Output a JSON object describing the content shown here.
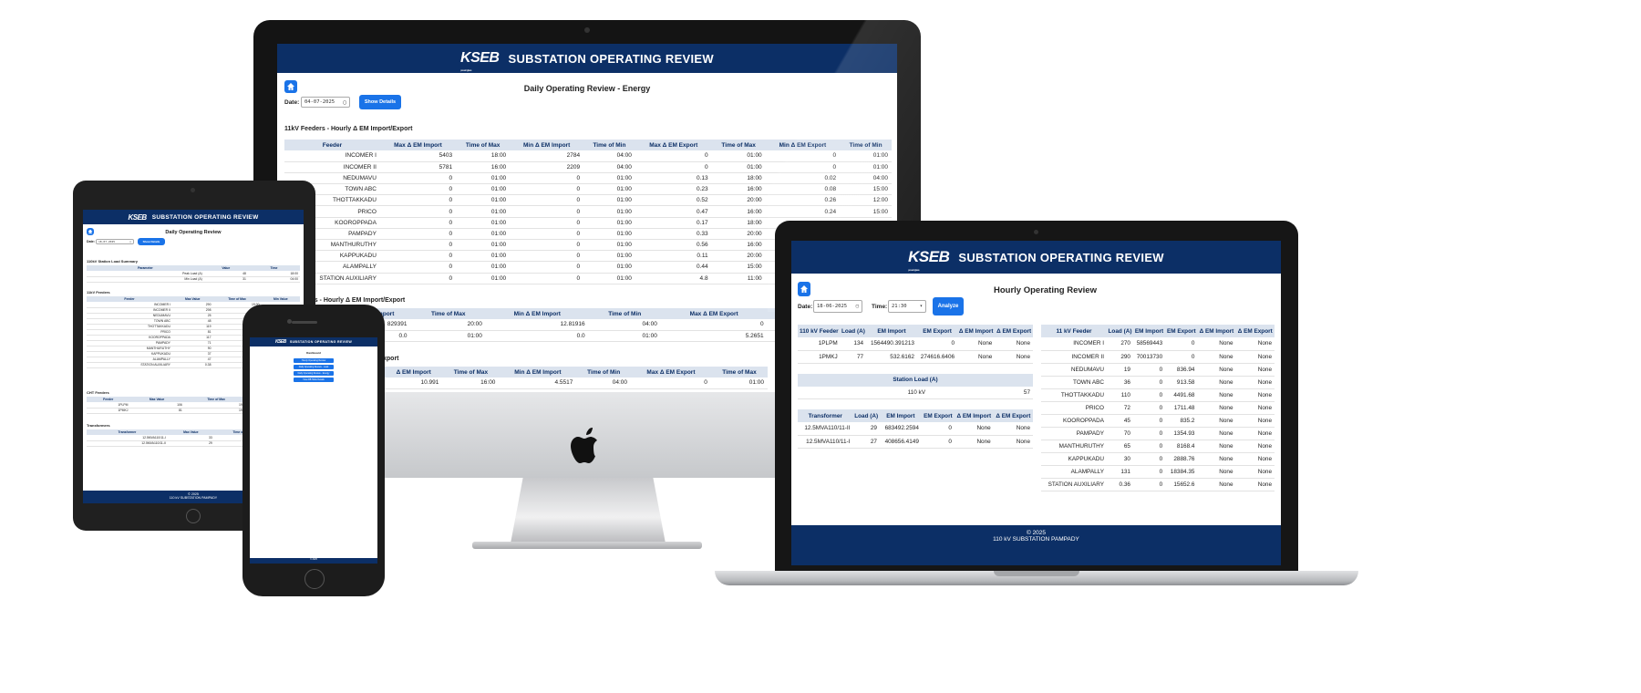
{
  "app": {
    "logo_text": "KSEB",
    "logo_tagline": "powering lives",
    "title": "SUBSTATION OPERATING REVIEW",
    "footer_line1": "© 2025",
    "footer_line2": "110 kV SUBSTATION PAMPADY"
  },
  "imac": {
    "page_title": "Daily Operating Review - Energy",
    "date_label": "Date:",
    "date_value": "04-07-2025",
    "show_button": "Show Details",
    "section1_title": "11kV Feeders - Hourly Δ EM Import/Export",
    "section2_title_fragment": "rs - Hourly Δ EM Import/Export",
    "section3_title_fragment": "xport",
    "columns": [
      "Feeder",
      "Max Δ EM Import",
      "Time of Max",
      "Min Δ EM Import",
      "Time of Min",
      "Max Δ EM Export",
      "Time of Max",
      "Min Δ EM Export",
      "Time of Min"
    ],
    "rows": [
      [
        "INCOMER I",
        "5403",
        "18:00",
        "2784",
        "04:00",
        "0",
        "01:00",
        "0",
        "01:00"
      ],
      [
        "INCOMER II",
        "5781",
        "16:00",
        "2209",
        "04:00",
        "0",
        "01:00",
        "0",
        "01:00"
      ],
      [
        "NEDUMAVU",
        "0",
        "01:00",
        "0",
        "01:00",
        "0.13",
        "18:00",
        "0.02",
        "04:00"
      ],
      [
        "TOWN ABC",
        "0",
        "01:00",
        "0",
        "01:00",
        "0.23",
        "16:00",
        "0.08",
        "15:00"
      ],
      [
        "THOTTAKKADU",
        "0",
        "01:00",
        "0",
        "01:00",
        "0.52",
        "20:00",
        "0.26",
        "12:00"
      ],
      [
        "PRICO",
        "0",
        "01:00",
        "0",
        "01:00",
        "0.47",
        "16:00",
        "0.24",
        "15:00"
      ],
      [
        "KOOROPPADA",
        "0",
        "01:00",
        "0",
        "01:00",
        "0.17",
        "18:00",
        "",
        ""
      ],
      [
        "PAMPADY",
        "0",
        "01:00",
        "0",
        "01:00",
        "0.33",
        "20:00",
        "",
        ""
      ],
      [
        "MANTHURUTHY",
        "0",
        "01:00",
        "0",
        "01:00",
        "0.56",
        "16:00",
        "",
        ""
      ],
      [
        "KAPPUKADU",
        "0",
        "01:00",
        "0",
        "01:00",
        "0.11",
        "20:00",
        "",
        ""
      ],
      [
        "ALAMPALLY",
        "0",
        "01:00",
        "0",
        "01:00",
        "0.44",
        "15:00",
        "",
        ""
      ],
      [
        "STATION AUXILIARY",
        "0",
        "01:00",
        "0",
        "01:00",
        "4.8",
        "11:00",
        "",
        ""
      ]
    ],
    "t2_columns": [
      "Import",
      "Time of Max",
      "Min Δ EM Import",
      "Time of Min",
      "Max Δ EM Export",
      "Time of Max"
    ],
    "t2_rows": [
      [
        "829391",
        "20:00",
        "12.81916",
        "04:00",
        "0",
        "01:00"
      ],
      [
        "0.0",
        "01:00",
        "0.0",
        "01:00",
        "5.2651",
        "20:00"
      ]
    ],
    "t3_columns": [
      "Δ EM Import",
      "Time of Max",
      "Min Δ EM Import",
      "Time of Min",
      "Max Δ EM Export",
      "Time of Max"
    ],
    "t3_rows": [
      [
        "10.991",
        "16:00",
        "4.5517",
        "04:00",
        "0",
        "01:00"
      ]
    ]
  },
  "ipad": {
    "page_title": "Daily Operating Review",
    "date_label": "Date:",
    "date_value": "18-07-2025",
    "show_button": "Show Details",
    "sec1_title": "110kV Station Load Summary",
    "sec1_columns": [
      "Parameter",
      "Value",
      "Time"
    ],
    "sec1_rows": [
      [
        "Peak Load (A)",
        "48",
        "18:00"
      ],
      [
        "Min Load (A)",
        "31",
        "04:00"
      ]
    ],
    "sec2_title": "11kV Feeders",
    "sec2_columns": [
      "Feeder",
      "Max Value",
      "Time of Max",
      "Min Value"
    ],
    "sec2_rows": [
      [
        "INCOMER I",
        "290",
        "19:00",
        ""
      ],
      [
        "INCOMER II",
        "298",
        "06:00",
        ""
      ],
      [
        "NEDUMAVU",
        "25",
        "20:00",
        ""
      ],
      [
        "TOWN ABC",
        "48",
        "19:00",
        ""
      ],
      [
        "THOTTAKKADU",
        "119",
        "19:00",
        ""
      ],
      [
        "PRICO",
        "81",
        "20:00",
        ""
      ],
      [
        "KOOROPPADA",
        "117",
        "19:00",
        ""
      ],
      [
        "PAMPADY",
        "71",
        "20:00",
        ""
      ],
      [
        "MANTHURUTHY",
        "90",
        "06:00",
        ""
      ],
      [
        "KAPPUKADU",
        "37",
        "19:00",
        ""
      ],
      [
        "ALAMPALLY",
        "47",
        "06:00",
        ""
      ],
      [
        "STATION AUXILIARY",
        "0.38",
        "01:00",
        ""
      ]
    ],
    "sec3_title": "CHT Feeders",
    "sec3_columns": [
      "Feeder",
      "Max Value",
      "Time of Max",
      "Min Value"
    ],
    "sec3_rows": [
      [
        "1PLPM",
        "106",
        "19:00",
        ""
      ],
      [
        "1PMKJ",
        "81",
        "19:00",
        ""
      ]
    ],
    "sec4_title": "Transformers",
    "sec4_columns": [
      "Transformer",
      "Max Value",
      "Time of Max",
      "Min Va"
    ],
    "sec4_rows": [
      [
        "12.5MVA110/11-I",
        "33",
        "06:00",
        ""
      ],
      [
        "12.5MVA110/11-II",
        "29",
        "18:00",
        ""
      ]
    ]
  },
  "iphone": {
    "page_title": "Dashboard",
    "menu": [
      "Hourly Operating Review",
      "Daily Operating Review - Load",
      "Daily Operating Review - Energy",
      "View DB Table Details"
    ],
    "footer": "© 2025"
  },
  "macbook": {
    "page_title": "Hourly Operating Review",
    "date_label": "Date:",
    "date_value": "18-06-2025",
    "time_label": "Time:",
    "time_value": "21:30",
    "analyze_button": "Analyze",
    "t1_columns": [
      "110 kV Feeder",
      "Load (A)",
      "EM Import",
      "EM Export",
      "Δ EM Import",
      "Δ EM Export"
    ],
    "t1_rows": [
      [
        "1PLPM",
        "134",
        "1564490.391213",
        "0",
        "None",
        "None"
      ],
      [
        "1PMKJ",
        "77",
        "532.6162",
        "274616.6406",
        "None",
        "None"
      ]
    ],
    "station_title": "Station Load (A)",
    "station_label": "110 kV",
    "station_value": "57",
    "t2_columns": [
      "Transformer",
      "Load (A)",
      "EM Import",
      "EM Export",
      "Δ EM Import",
      "Δ EM Export"
    ],
    "t2_rows": [
      [
        "12.5MVA110/11-II",
        "29",
        "683492.2594",
        "0",
        "None",
        "None"
      ],
      [
        "12.5MVA110/11-I",
        "27",
        "408656.4149",
        "0",
        "None",
        "None"
      ]
    ],
    "t3_columns": [
      "11 kV Feeder",
      "Load (A)",
      "EM Import",
      "EM Export",
      "Δ EM Import",
      "Δ EM Export"
    ],
    "t3_rows": [
      [
        "INCOMER I",
        "270",
        "58569443",
        "0",
        "None",
        "None"
      ],
      [
        "INCOMER II",
        "290",
        "70013730",
        "0",
        "None",
        "None"
      ],
      [
        "NEDUMAVU",
        "19",
        "0",
        "836.94",
        "None",
        "None"
      ],
      [
        "TOWN ABC",
        "36",
        "0",
        "913.58",
        "None",
        "None"
      ],
      [
        "THOTTAKKADU",
        "110",
        "0",
        "4491.68",
        "None",
        "None"
      ],
      [
        "PRICO",
        "72",
        "0",
        "1711.48",
        "None",
        "None"
      ],
      [
        "KOOROPPADA",
        "45",
        "0",
        "835.2",
        "None",
        "None"
      ],
      [
        "PAMPADY",
        "70",
        "0",
        "1354.93",
        "None",
        "None"
      ],
      [
        "MANTHURUTHY",
        "65",
        "0",
        "8168.4",
        "None",
        "None"
      ],
      [
        "KAPPUKADU",
        "30",
        "0",
        "2888.76",
        "None",
        "None"
      ],
      [
        "ALAMPALLY",
        "131",
        "0",
        "18384.35",
        "None",
        "None"
      ],
      [
        "STATION AUXILIARY",
        "0.36",
        "0",
        "15652.6",
        "None",
        "None"
      ]
    ]
  }
}
